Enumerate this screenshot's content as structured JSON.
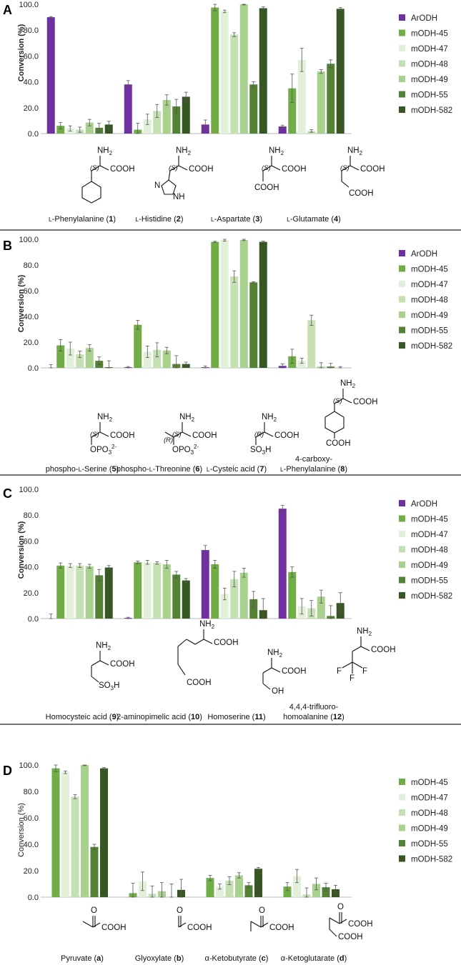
{
  "colors": {
    "ArODH": "#7030a0",
    "mODH-45": "#70ad47",
    "mODH-47": "#e2efd9",
    "mODH-48": "#c5e0b3",
    "mODH-49": "#a9d18e",
    "mODH-55": "#548235",
    "mODH-582": "#375623",
    "separator": "#444444",
    "axis": "#b7b7b7"
  },
  "chart_data": [
    {
      "panel": "A",
      "type": "bar",
      "ylabel": "Conversion (%)",
      "ylabel_bold": true,
      "ylim": [
        0,
        100
      ],
      "yticks": [
        "0.0",
        "20.0",
        "40.0",
        "60.0",
        "80.0",
        "100.0"
      ],
      "legend": [
        "ArODH",
        "mODH-45",
        "mODH-47",
        "mODH-48",
        "mODH-49",
        "mODH-55",
        "mODH-582"
      ],
      "categories": [
        "L-Phenylalanine",
        "L-Histidine",
        "L-Aspartate",
        "L-Glutamate"
      ],
      "labels": [
        {
          "pre": "L",
          "name": "-Phenylalanine (",
          "num": "1",
          "post": ")"
        },
        {
          "pre": "L",
          "name": "-Histidine (",
          "num": "2",
          "post": ")"
        },
        {
          "pre": "L",
          "name": "-Aspartate (",
          "num": "3",
          "post": ")"
        },
        {
          "pre": "L",
          "name": "-Glutamate (",
          "num": "4",
          "post": ")"
        }
      ],
      "series": [
        {
          "name": "ArODH",
          "values": [
            90,
            38,
            7,
            5.5
          ],
          "errors": [
            0.5,
            3,
            3.5,
            1
          ]
        },
        {
          "name": "mODH-45",
          "values": [
            6,
            3,
            97.5,
            35
          ],
          "errors": [
            2.5,
            5,
            2.5,
            11
          ]
        },
        {
          "name": "mODH-47",
          "values": [
            4,
            11,
            94.5,
            57
          ],
          "errors": [
            2,
            4,
            1,
            9
          ]
        },
        {
          "name": "mODH-48",
          "values": [
            3,
            17.5,
            76.5,
            2
          ],
          "errors": [
            2,
            5,
            1.5,
            1
          ]
        },
        {
          "name": "mODH-49",
          "values": [
            8.5,
            26,
            100,
            48
          ],
          "errors": [
            2.5,
            4,
            0.5,
            1.5
          ]
        },
        {
          "name": "mODH-55",
          "values": [
            4.5,
            21,
            38,
            54
          ],
          "errors": [
            3.5,
            5.5,
            2,
            3
          ]
        },
        {
          "name": "mODH-582",
          "values": [
            7,
            28.5,
            97,
            96.5
          ],
          "errors": [
            2.5,
            3.5,
            1,
            1
          ]
        }
      ]
    },
    {
      "panel": "B",
      "type": "bar",
      "ylabel": "Conversion (%)",
      "ylabel_bold": true,
      "ylim": [
        0,
        100
      ],
      "yticks": [
        "0.0",
        "20.0",
        "40.0",
        "60.0",
        "80.0",
        "100.0"
      ],
      "legend": [
        "ArODH",
        "mODH-45",
        "mODH-47",
        "mODH-48",
        "mODH-49",
        "mODH-55",
        "mODH-582"
      ],
      "categories": [
        "phospho-L-Serine",
        "phospho-L-Threonine",
        "L-Cysteic acid",
        "4-carboxy-L-Phenylalanine"
      ],
      "labels": [
        {
          "pre": "phospho-",
          "sc": "L",
          "name": "-Serine (",
          "num": "5",
          "post": ")"
        },
        {
          "pre": "phospho-",
          "sc": "L",
          "name": "-Threonine (",
          "num": "6",
          "post": ")"
        },
        {
          "pre": "",
          "sc": "L",
          "name": "-Cysteic acid (",
          "num": "7",
          "post": ")"
        },
        {
          "line1": "4-carboxy-",
          "pre": "",
          "sc": "L",
          "name": "-Phenylalanine (",
          "num": "8",
          "post": ")"
        }
      ],
      "series": [
        {
          "name": "ArODH",
          "values": [
            0,
            0.5,
            0.5,
            1.5
          ],
          "errors": [
            2.5,
            0.5,
            1,
            1.5
          ]
        },
        {
          "name": "mODH-45",
          "values": [
            17.5,
            33.5,
            98,
            9
          ],
          "errors": [
            4.5,
            3.5,
            0.5,
            5.5
          ]
        },
        {
          "name": "mODH-47",
          "values": [
            15,
            12.5,
            99.5,
            5.5
          ],
          "errors": [
            5,
            4.5,
            1,
            2
          ]
        },
        {
          "name": "mODH-48",
          "values": [
            10.5,
            14,
            71,
            37
          ],
          "errors": [
            2.5,
            5.5,
            4.5,
            4
          ]
        },
        {
          "name": "mODH-49",
          "values": [
            15.5,
            13.5,
            99.5,
            1
          ],
          "errors": [
            2.5,
            2.5,
            0.5,
            3
          ]
        },
        {
          "name": "mODH-55",
          "values": [
            5.5,
            3,
            66.5,
            1
          ],
          "errors": [
            3,
            6.5,
            0.5,
            2.5
          ]
        },
        {
          "name": "mODH-582",
          "values": [
            0.5,
            3,
            98,
            0
          ],
          "errors": [
            5,
            1.5,
            0.5,
            1
          ]
        }
      ]
    },
    {
      "panel": "C",
      "type": "bar",
      "ylabel": "Conversion (%)",
      "ylabel_bold": true,
      "ylim": [
        0,
        100
      ],
      "yticks": [
        "0.0",
        "20.0",
        "40.0",
        "60.0",
        "80.0",
        "100.0"
      ],
      "legend": [
        "ArODH",
        "mODH-45",
        "mODH-47",
        "mODH-48",
        "mODH-49",
        "mODH-55",
        "mODH-582"
      ],
      "categories": [
        "Homocysteic acid",
        "2-aminopimelic acid",
        "Homoserine",
        "4,4,4-trifluoro-homoalanine"
      ],
      "labels": [
        {
          "name": "Homocysteic acid (",
          "num": "9",
          "post": ")"
        },
        {
          "name": "2-aminopimelic acid (",
          "num": "10",
          "post": ")"
        },
        {
          "name": "Homoserine (",
          "num": "11",
          "post": ")"
        },
        {
          "line1": "4,4,4-trifluoro-",
          "name": "homoalanine (",
          "num": "12",
          "post": ")"
        }
      ],
      "series": [
        {
          "name": "ArODH",
          "values": [
            0,
            0.5,
            53,
            85
          ],
          "errors": [
            3.5,
            0.5,
            3.5,
            2.5
          ]
        },
        {
          "name": "mODH-45",
          "values": [
            41,
            43.5,
            42,
            36
          ],
          "errors": [
            2,
            1,
            3,
            4
          ]
        },
        {
          "name": "mODH-47",
          "values": [
            41,
            43.5,
            19,
            9.5
          ],
          "errors": [
            1.5,
            1.5,
            4.5,
            6
          ]
        },
        {
          "name": "mODH-48",
          "values": [
            41,
            43,
            30.5,
            8
          ],
          "errors": [
            1.5,
            1,
            6,
            6
          ]
        },
        {
          "name": "mODH-49",
          "values": [
            40.5,
            42,
            35.5,
            17
          ],
          "errors": [
            1.5,
            3,
            3.5,
            5
          ]
        },
        {
          "name": "mODH-55",
          "values": [
            33.5,
            34,
            15,
            2
          ],
          "errors": [
            4.5,
            2.5,
            6,
            8
          ]
        },
        {
          "name": "mODH-582",
          "values": [
            39.5,
            29.5,
            6.5,
            12
          ],
          "errors": [
            1.5,
            1.5,
            9,
            8
          ]
        }
      ]
    },
    {
      "panel": "D",
      "type": "bar",
      "ylabel": "Conversion (%)",
      "ylabel_bold": false,
      "ylim": [
        0,
        100
      ],
      "yticks": [
        "0.0",
        "20.0",
        "40.0",
        "60.0",
        "80.0",
        "100.0"
      ],
      "legend": [
        "mODH-45",
        "mODH-47",
        "mODH-48",
        "mODH-49",
        "mODH-55",
        "mODH-582"
      ],
      "categories": [
        "Pyruvate",
        "Glyoxylate",
        "α-Ketobutyrate",
        "α-Ketoglutarate"
      ],
      "labels": [
        {
          "name": "Pyruvate (",
          "num": "a",
          "post": ")"
        },
        {
          "name": "Glyoxylate (",
          "num": "b",
          "post": ")"
        },
        {
          "name": "α-Ketobutyrate (",
          "num": "c",
          "post": ")"
        },
        {
          "name": "α-Ketoglutarate (",
          "num": "d",
          "post": ")"
        }
      ],
      "series": [
        {
          "name": "mODH-45",
          "values": [
            97.5,
            3,
            14.5,
            8
          ],
          "errors": [
            2.5,
            7.5,
            2,
            3
          ]
        },
        {
          "name": "mODH-47",
          "values": [
            94.5,
            12,
            8,
            16
          ],
          "errors": [
            1,
            7,
            2,
            5
          ]
        },
        {
          "name": "mODH-48",
          "values": [
            76,
            2.5,
            12.5,
            2
          ],
          "errors": [
            1.5,
            6,
            3,
            5
          ]
        },
        {
          "name": "mODH-49",
          "values": [
            100,
            4.5,
            16.5,
            10
          ],
          "errors": [
            0.5,
            6.5,
            2,
            4.5
          ]
        },
        {
          "name": "mODH-55",
          "values": [
            38,
            0,
            9,
            7.5
          ],
          "errors": [
            2,
            10,
            2,
            3
          ]
        },
        {
          "name": "mODH-582",
          "values": [
            97.5,
            5.5,
            21.5,
            6
          ],
          "errors": [
            0.5,
            8,
            1,
            3
          ]
        }
      ]
    }
  ],
  "structures": {
    "A": [
      {
        "nh2": "NH2",
        "stereo": "(S)",
        "cooh": "COOH",
        "extra": []
      },
      {
        "nh2": "NH2",
        "stereo": "(S)",
        "cooh": "COOH",
        "extra": [
          "N",
          "NH"
        ]
      },
      {
        "nh2": "NH2",
        "stereo": "(S)",
        "cooh": "COOH",
        "extra": [
          "COOH"
        ]
      },
      {
        "nh2": "NH2",
        "stereo": "(S)",
        "cooh": "COOH",
        "extra": [
          "COOH"
        ]
      }
    ],
    "B": [
      {
        "nh2": "NH2",
        "stereo": "(S)",
        "cooh": "COOH",
        "extra": [
          "OPO3",
          "2-"
        ]
      },
      {
        "nh2": "NH2",
        "stereo": "(S)",
        "stereo2": "(R)",
        "cooh": "COOH",
        "extra": [
          "OPO3",
          "2-"
        ]
      },
      {
        "nh2": "NH2",
        "stereo": "(R)",
        "cooh": "COOH",
        "extra": [
          "SO3H"
        ]
      },
      {
        "nh2": "NH2",
        "stereo": "(S)",
        "cooh": "COOH",
        "extra": [
          "COOH"
        ]
      }
    ],
    "C": [
      {
        "nh2": "NH2",
        "cooh": "COOH",
        "extra": [
          "SO3H"
        ]
      },
      {
        "nh2": "NH2",
        "cooh": "COOH",
        "extra": [
          "COOH"
        ]
      },
      {
        "nh2": "NH2",
        "cooh": "COOH",
        "extra": [
          "OH"
        ]
      },
      {
        "nh2": "NH2",
        "cooh": "COOH",
        "extra": [
          "F",
          "F",
          "F"
        ]
      }
    ],
    "D": [
      {
        "o": "O",
        "cooh": "COOH"
      },
      {
        "o": "O",
        "cooh": "COOH"
      },
      {
        "o": "O",
        "cooh": "COOH"
      },
      {
        "o": "O",
        "cooh": "COOH",
        "extra": [
          "COOH"
        ]
      }
    ]
  }
}
